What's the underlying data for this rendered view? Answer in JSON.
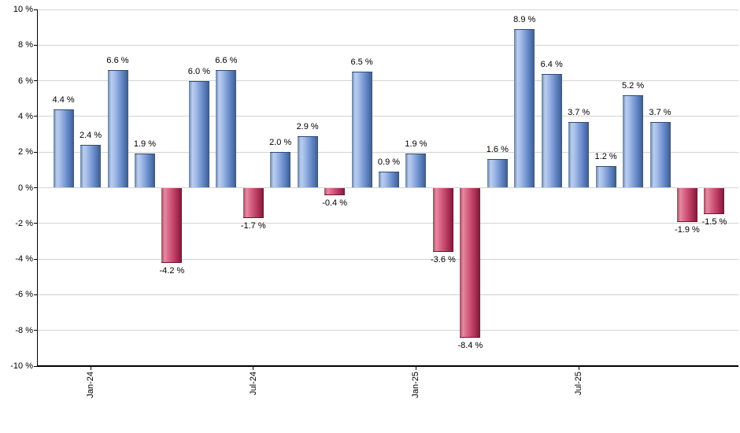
{
  "chart_data": {
    "type": "bar",
    "title": "",
    "xlabel": "",
    "ylabel": "",
    "unit": "%",
    "ylim": [
      -10,
      10
    ],
    "y_tick_step": 2,
    "grid": true,
    "legend": false,
    "y_tick_labels": [
      "10 %",
      "8 %",
      "6 %",
      "4 %",
      "2 %",
      "0 %",
      "-2 %",
      "-4 %",
      "-6 %",
      "-8 %",
      "-10 %"
    ],
    "bars": [
      {
        "value": 4.4,
        "label": "4.4 %"
      },
      {
        "value": 2.4,
        "label": "2.4 %"
      },
      {
        "value": 6.6,
        "label": "6.6 %"
      },
      {
        "value": 1.9,
        "label": "1.9 %"
      },
      {
        "value": -4.2,
        "label": "-4.2 %"
      },
      {
        "value": 6.0,
        "label": "6.0 %"
      },
      {
        "value": 6.6,
        "label": "6.6 %"
      },
      {
        "value": -1.7,
        "label": "-1.7 %"
      },
      {
        "value": 2.0,
        "label": "2.0 %"
      },
      {
        "value": 2.9,
        "label": "2.9 %"
      },
      {
        "value": -0.4,
        "label": "-0.4 %"
      },
      {
        "value": 6.5,
        "label": "6.5 %"
      },
      {
        "value": 0.9,
        "label": "0.9 %"
      },
      {
        "value": 1.9,
        "label": "1.9 %"
      },
      {
        "value": -3.6,
        "label": "-3.6 %"
      },
      {
        "value": -8.4,
        "label": "-8.4 %"
      },
      {
        "value": 1.6,
        "label": "1.6 %"
      },
      {
        "value": 8.9,
        "label": "8.9 %"
      },
      {
        "value": 6.4,
        "label": "6.4 %"
      },
      {
        "value": 3.7,
        "label": "3.7 %"
      },
      {
        "value": 1.2,
        "label": "1.2 %"
      },
      {
        "value": 5.2,
        "label": "5.2 %"
      },
      {
        "value": 3.7,
        "label": "3.7 %"
      },
      {
        "value": -1.9,
        "label": "-1.9 %"
      },
      {
        "value": -1.5,
        "label": "-1.5 %"
      }
    ],
    "x_axis_ticks": [
      {
        "bar_index": 1,
        "label": "Jan-24"
      },
      {
        "bar_index": 7,
        "label": "Jul-24"
      },
      {
        "bar_index": 13,
        "label": "Jan-25"
      },
      {
        "bar_index": 19,
        "label": "Jul-25"
      }
    ],
    "colors": {
      "background": "#ffffff",
      "grid": "#d3d3d3",
      "axis": "#000000",
      "label_text": "#000000",
      "positive": "#6f92cf",
      "negative": "#c44f71",
      "positive_gradient": [
        "#64809f",
        "#b9cdf0",
        "#a9c0ea",
        "#85a3da",
        "#6286c6",
        "#4b6da5",
        "#3d587c"
      ],
      "negative_gradient": [
        "#9c4a5e",
        "#e78ba2",
        "#dc6f8d",
        "#cc5076",
        "#b43659",
        "#93234b",
        "#75192f"
      ]
    }
  }
}
